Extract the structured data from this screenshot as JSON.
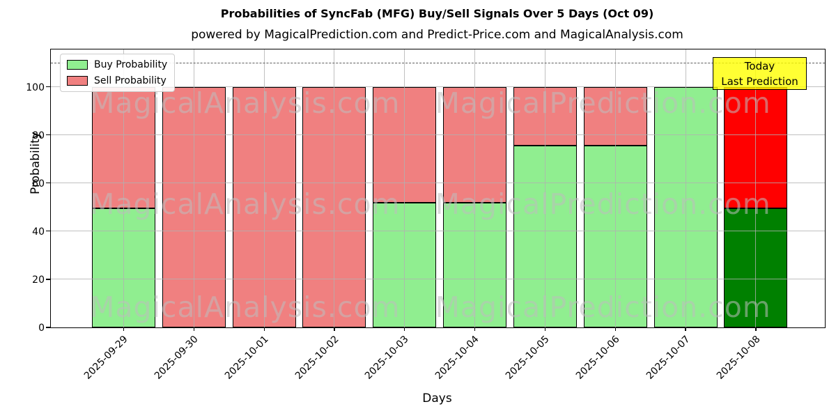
{
  "header": {
    "title": "Probabilities of SyncFab (MFG) Buy/Sell Signals Over 5 Days (Oct 09)",
    "subtitle": "powered by MagicalPrediction.com and Predict-Price.com and MagicalAnalysis.com"
  },
  "legend": {
    "items": [
      {
        "label": "Buy Probability",
        "color": "#90ee90"
      },
      {
        "label": "Sell Probability",
        "color": "#f08080"
      }
    ]
  },
  "annotation": {
    "line1": "Today",
    "line2": "Last Prediction",
    "bg_color": "#ffff00"
  },
  "watermarks": {
    "left": "MagicalAnalysis.com",
    "right": "MagicalPrediction.com"
  },
  "chart_data": {
    "type": "bar",
    "stacked": true,
    "title": "Probabilities of SyncFab (MFG) Buy/Sell Signals Over 5 Days (Oct 09)",
    "xlabel": "Days",
    "ylabel": "Probability",
    "categories": [
      "2025-09-29",
      "2025-09-30",
      "2025-10-01",
      "2025-10-02",
      "2025-10-03",
      "2025-10-04",
      "2025-10-05",
      "2025-10-06",
      "2025-10-07",
      "2025-10-08"
    ],
    "series": [
      {
        "name": "Buy Probability",
        "color": "#90ee90",
        "today_color": "#008000",
        "values": [
          49.4,
          0,
          0,
          0,
          51.7,
          51.7,
          75.5,
          75.5,
          100,
          49.4
        ]
      },
      {
        "name": "Sell Probability",
        "color": "#f08080",
        "today_color": "#ff0000",
        "values": [
          50.6,
          100,
          100,
          100,
          48.3,
          48.3,
          24.5,
          24.5,
          0,
          50.6
        ]
      }
    ],
    "yticks": [
      0,
      20,
      40,
      60,
      80,
      100
    ],
    "ylim": [
      0,
      115.5
    ],
    "dashed_line_y": 110,
    "grid": true,
    "legend_position": "upper left",
    "today_annotation_index": 9
  }
}
